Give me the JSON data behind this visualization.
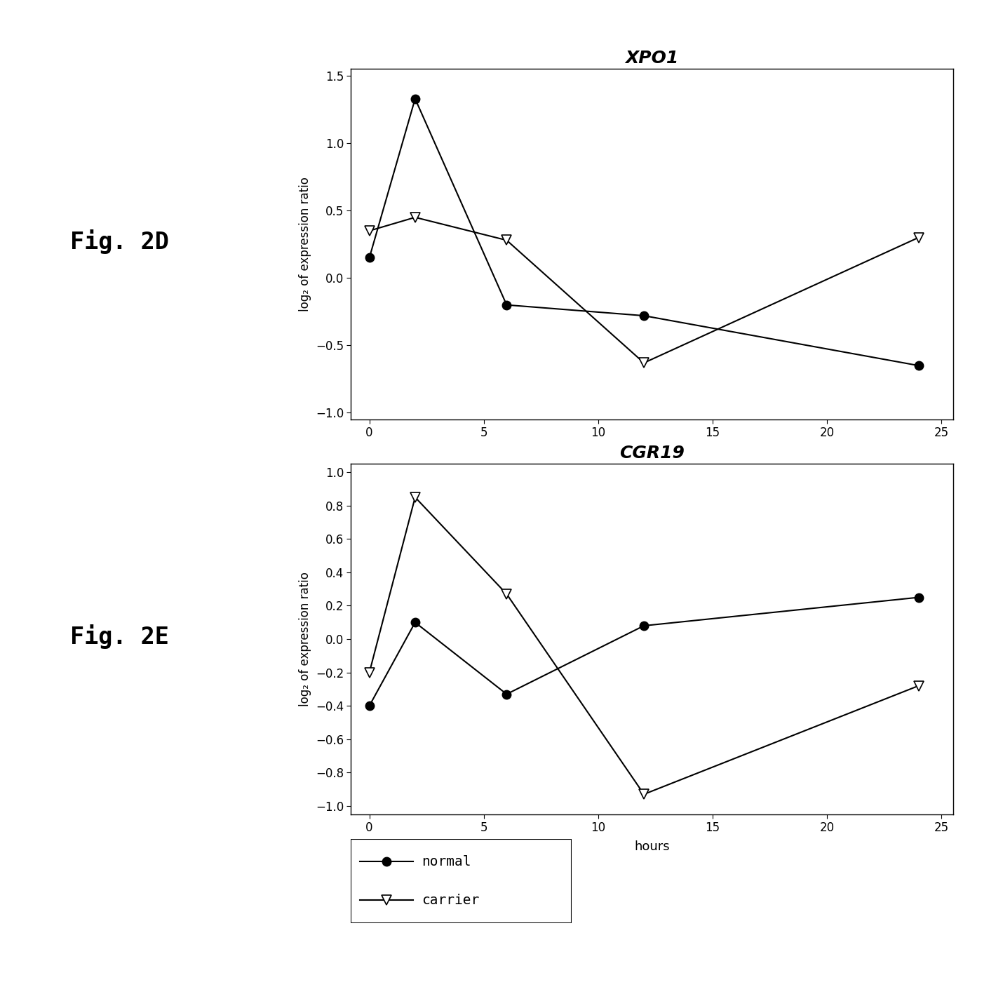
{
  "xpo1": {
    "title": "XPO1",
    "normal_x": [
      0,
      2,
      6,
      12,
      24
    ],
    "normal_y": [
      0.15,
      1.33,
      -0.2,
      -0.28,
      -0.65
    ],
    "carrier_x": [
      0,
      2,
      6,
      12,
      24
    ],
    "carrier_y": [
      0.35,
      0.45,
      0.28,
      -0.63,
      0.3
    ],
    "ylim": [
      -1.05,
      1.55
    ],
    "yticks": [
      -1.0,
      -0.5,
      0.0,
      0.5,
      1.0,
      1.5
    ],
    "xlim": [
      -0.8,
      25.5
    ],
    "xticks": [
      0,
      5,
      10,
      15,
      20,
      25
    ]
  },
  "cgr19": {
    "title": "CGR19",
    "normal_x": [
      0,
      2,
      6,
      12,
      24
    ],
    "normal_y": [
      -0.4,
      0.1,
      -0.33,
      0.08,
      0.25
    ],
    "carrier_x": [
      0,
      2,
      6,
      12,
      24
    ],
    "carrier_y": [
      -0.2,
      0.85,
      0.27,
      -0.93,
      -0.28
    ],
    "ylim": [
      -1.05,
      1.05
    ],
    "yticks": [
      -1.0,
      -0.8,
      -0.6,
      -0.4,
      -0.2,
      0.0,
      0.2,
      0.4,
      0.6,
      0.8,
      1.0
    ],
    "xlim": [
      -0.8,
      25.5
    ],
    "xticks": [
      0,
      5,
      10,
      15,
      20,
      25
    ]
  },
  "ylabel": "log₂ of expression ratio",
  "xlabel": "hours",
  "fig2d_label": "Fig. 2D",
  "fig2e_label": "Fig. 2E",
  "legend_normal": "normal",
  "legend_carrier": "carrier",
  "background_color": "#ffffff"
}
